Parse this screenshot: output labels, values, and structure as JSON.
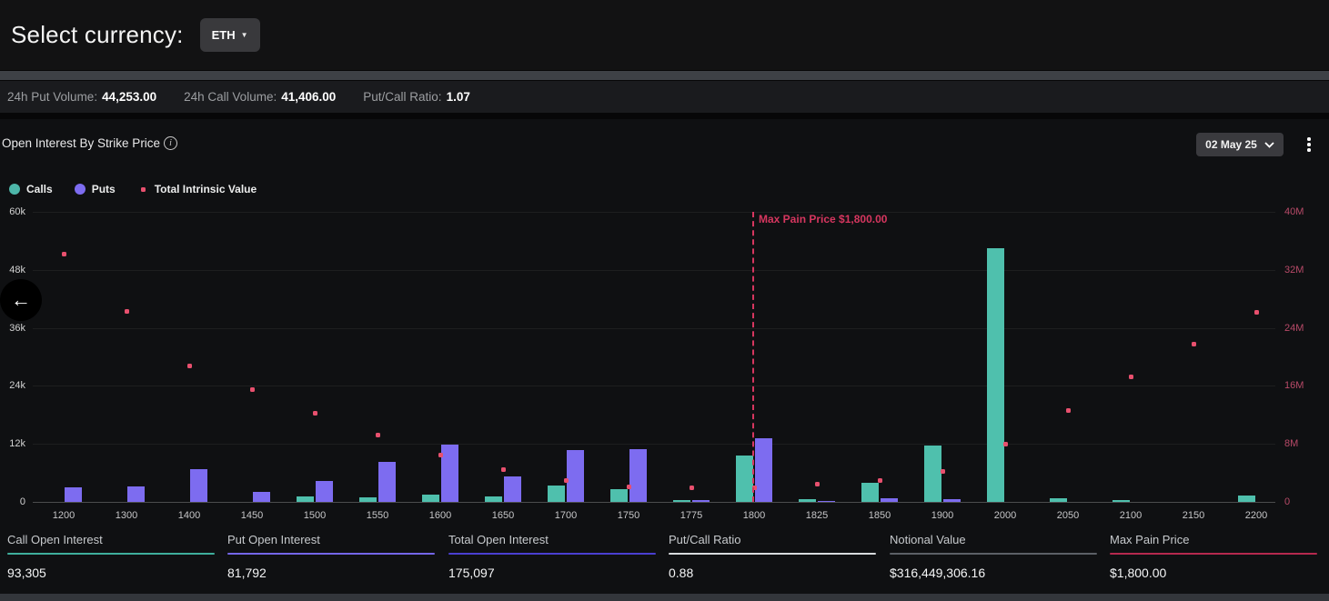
{
  "header": {
    "select_label": "Select currency:",
    "currency": "ETH"
  },
  "stats_bar": {
    "items": [
      {
        "label": "24h Put Volume:",
        "value": "44,253.00"
      },
      {
        "label": "24h Call Volume:",
        "value": "41,406.00"
      },
      {
        "label": "Put/Call Ratio:",
        "value": "1.07"
      }
    ]
  },
  "chart_section": {
    "title": "Open Interest By Strike Price",
    "date_selector": "02 May 25",
    "legend": [
      {
        "label": "Calls",
        "color": "#4db6a9"
      },
      {
        "label": "Puts",
        "color": "#7d6cf0"
      },
      {
        "label": "Total Intrinsic Value",
        "color": "#e8506e"
      }
    ]
  },
  "chart_data": {
    "type": "bar",
    "title": "Open Interest By Strike Price",
    "categories": [
      1200,
      1300,
      1400,
      1450,
      1500,
      1550,
      1600,
      1650,
      1700,
      1750,
      1775,
      1800,
      1825,
      1850,
      1900,
      2000,
      2050,
      2100,
      2150,
      2200
    ],
    "series": [
      {
        "name": "Calls",
        "type": "bar",
        "axis": "left",
        "color": "#4fc0ad",
        "values": [
          0,
          0,
          0,
          0,
          1100,
          1000,
          1500,
          1100,
          3400,
          2600,
          300,
          9600,
          500,
          4000,
          11700,
          52500,
          800,
          400,
          0,
          1400
        ]
      },
      {
        "name": "Puts",
        "type": "bar",
        "axis": "left",
        "color": "#7d6cf0",
        "values": [
          3000,
          3200,
          6700,
          2100,
          4400,
          8200,
          11900,
          5200,
          10800,
          10900,
          400,
          13100,
          100,
          700,
          500,
          0,
          0,
          0,
          0,
          0
        ]
      },
      {
        "name": "Total Intrinsic Value",
        "type": "scatter",
        "axis": "right",
        "color": "#e8506e",
        "values": [
          34200000,
          26300000,
          18800000,
          15500000,
          12200000,
          9200000,
          6400000,
          4400000,
          3000000,
          2100000,
          2000000,
          1900000,
          2400000,
          3000000,
          4200000,
          8000000,
          12600000,
          17200000,
          21700000,
          26200000
        ]
      }
    ],
    "y_left": {
      "tick_labels": [
        "60k",
        "48k",
        "36k",
        "24k",
        "12k",
        "0"
      ],
      "range": [
        0,
        60000
      ]
    },
    "y_right": {
      "tick_labels": [
        "40M",
        "32M",
        "24M",
        "16M",
        "8M",
        "0"
      ],
      "range": [
        0,
        40000000
      ]
    },
    "grid": true,
    "legend_position": "top-left",
    "max_pain": {
      "strike": 1800,
      "label": "Max Pain Price $1,800.00"
    }
  },
  "summary": {
    "items": [
      {
        "label": "Call Open Interest",
        "value": "93,305",
        "accent": "#3fae9c"
      },
      {
        "label": "Put Open Interest",
        "value": "81,792",
        "accent": "#7466e8"
      },
      {
        "label": "Total Open Interest",
        "value": "175,097",
        "accent": "#4a3fd0"
      },
      {
        "label": "Put/Call Ratio",
        "value": "0.88",
        "accent": "#d7dadd"
      },
      {
        "label": "Notional Value",
        "value": "$316,449,306.16",
        "accent": "#5c6066"
      },
      {
        "label": "Max Pain Price",
        "value": "$1,800.00",
        "accent": "#b5294e"
      }
    ]
  },
  "icons": {
    "back_arrow": "←",
    "currency_caret": "▼",
    "info": "i"
  }
}
